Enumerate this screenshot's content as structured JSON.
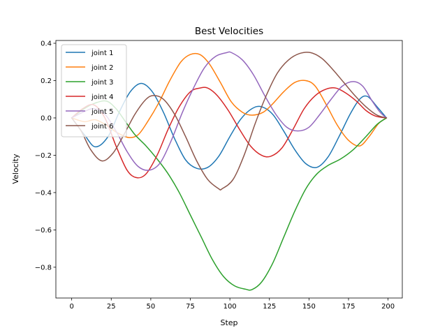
{
  "chart_data": {
    "type": "line",
    "title": "Best Velocities",
    "xlabel": "Step",
    "ylabel": "Velocity",
    "xlim": [
      -10,
      209
    ],
    "ylim": [
      -0.965,
      0.415
    ],
    "xticks": [
      0,
      25,
      50,
      75,
      100,
      125,
      150,
      175,
      200
    ],
    "yticks": [
      -0.8,
      -0.6,
      -0.4,
      -0.2,
      0.0,
      0.2,
      0.4
    ],
    "ytick_labels": [
      "−0.8",
      "−0.6",
      "−0.4",
      "−0.2",
      "0.0",
      "0.2",
      "0.4"
    ],
    "grid": false,
    "legend_position": "upper-left",
    "series": [
      {
        "name": "joint 1",
        "color": "#1f77b4",
        "x": [
          0,
          8,
          15,
          23,
          30,
          37,
          44,
          51,
          58,
          65,
          72,
          79,
          86,
          93,
          100,
          107,
          114,
          120,
          127,
          134,
          141,
          148,
          155,
          162,
          169,
          176,
          182,
          187,
          193,
          199
        ],
        "y": [
          0.0,
          -0.09,
          -0.155,
          -0.1,
          0.03,
          0.14,
          0.185,
          0.14,
          0.03,
          -0.11,
          -0.225,
          -0.27,
          -0.265,
          -0.205,
          -0.1,
          -0.005,
          0.05,
          0.06,
          0.02,
          -0.07,
          -0.17,
          -0.245,
          -0.265,
          -0.21,
          -0.1,
          0.02,
          0.1,
          0.115,
          0.06,
          0.0
        ]
      },
      {
        "name": "joint 2",
        "color": "#ff7f0e",
        "x": [
          0,
          8,
          15,
          22,
          29,
          36,
          42,
          48,
          55,
          62,
          69,
          75,
          81,
          87,
          94,
          101,
          108,
          114,
          121,
          127,
          134,
          141,
          148,
          154,
          161,
          168,
          175,
          182,
          188,
          194,
          199
        ],
        "y": [
          0.0,
          -0.02,
          -0.01,
          -0.04,
          -0.08,
          -0.105,
          -0.09,
          -0.02,
          0.08,
          0.2,
          0.3,
          0.34,
          0.34,
          0.29,
          0.19,
          0.085,
          0.03,
          0.015,
          0.03,
          0.075,
          0.14,
          0.19,
          0.2,
          0.17,
          0.07,
          -0.04,
          -0.12,
          -0.15,
          -0.1,
          -0.03,
          0.0
        ]
      },
      {
        "name": "joint 3",
        "color": "#2ca02c",
        "x": [
          0,
          8,
          15,
          22,
          28,
          34,
          40,
          47,
          54,
          61,
          68,
          75,
          82,
          89,
          96,
          103,
          110,
          114,
          120,
          127,
          134,
          141,
          148,
          155,
          162,
          170,
          178,
          186,
          193,
          199
        ],
        "y": [
          0.0,
          0.05,
          0.08,
          0.09,
          0.05,
          -0.02,
          -0.09,
          -0.15,
          -0.22,
          -0.3,
          -0.4,
          -0.52,
          -0.64,
          -0.76,
          -0.85,
          -0.9,
          -0.918,
          -0.92,
          -0.88,
          -0.78,
          -0.64,
          -0.5,
          -0.38,
          -0.3,
          -0.255,
          -0.22,
          -0.17,
          -0.1,
          -0.035,
          0.0
        ]
      },
      {
        "name": "joint 4",
        "color": "#d62728",
        "x": [
          0,
          7,
          14,
          21,
          28,
          35,
          41,
          47,
          54,
          61,
          68,
          75,
          81,
          86,
          92,
          99,
          106,
          113,
          120,
          126,
          133,
          140,
          147,
          154,
          161,
          167,
          173,
          180,
          186,
          192,
          199
        ],
        "y": [
          0.0,
          0.05,
          0.07,
          0.0,
          -0.15,
          -0.28,
          -0.32,
          -0.3,
          -0.2,
          -0.06,
          0.06,
          0.14,
          0.16,
          0.16,
          0.12,
          0.04,
          -0.06,
          -0.15,
          -0.2,
          -0.205,
          -0.16,
          -0.06,
          0.05,
          0.12,
          0.155,
          0.16,
          0.135,
          0.09,
          0.04,
          0.01,
          0.0
        ]
      },
      {
        "name": "joint 5",
        "color": "#9467bd",
        "x": [
          0,
          7,
          14,
          21,
          28,
          35,
          42,
          49,
          56,
          63,
          70,
          77,
          84,
          91,
          98,
          101,
          108,
          115,
          122,
          129,
          136,
          143,
          150,
          157,
          164,
          171,
          178,
          184,
          190,
          195,
          199
        ],
        "y": [
          0.0,
          0.03,
          0.05,
          0.02,
          -0.07,
          -0.18,
          -0.26,
          -0.28,
          -0.24,
          -0.12,
          0.03,
          0.16,
          0.27,
          0.33,
          0.35,
          0.35,
          0.31,
          0.23,
          0.12,
          0.02,
          -0.05,
          -0.07,
          -0.05,
          0.02,
          0.1,
          0.17,
          0.195,
          0.17,
          0.09,
          0.03,
          0.0
        ]
      },
      {
        "name": "joint 6",
        "color": "#8c564b",
        "x": [
          0,
          6,
          12,
          19,
          26,
          33,
          40,
          47,
          52,
          58,
          65,
          72,
          79,
          86,
          93,
          95,
          102,
          109,
          116,
          123,
          130,
          137,
          144,
          151,
          158,
          165,
          172,
          179,
          186,
          193,
          199
        ],
        "y": [
          0.0,
          -0.07,
          -0.17,
          -0.23,
          -0.19,
          -0.09,
          0.02,
          0.1,
          0.12,
          0.1,
          0.02,
          -0.1,
          -0.23,
          -0.33,
          -0.38,
          -0.38,
          -0.33,
          -0.2,
          -0.03,
          0.12,
          0.24,
          0.31,
          0.345,
          0.35,
          0.32,
          0.26,
          0.19,
          0.12,
          0.06,
          0.015,
          0.0
        ]
      }
    ]
  }
}
